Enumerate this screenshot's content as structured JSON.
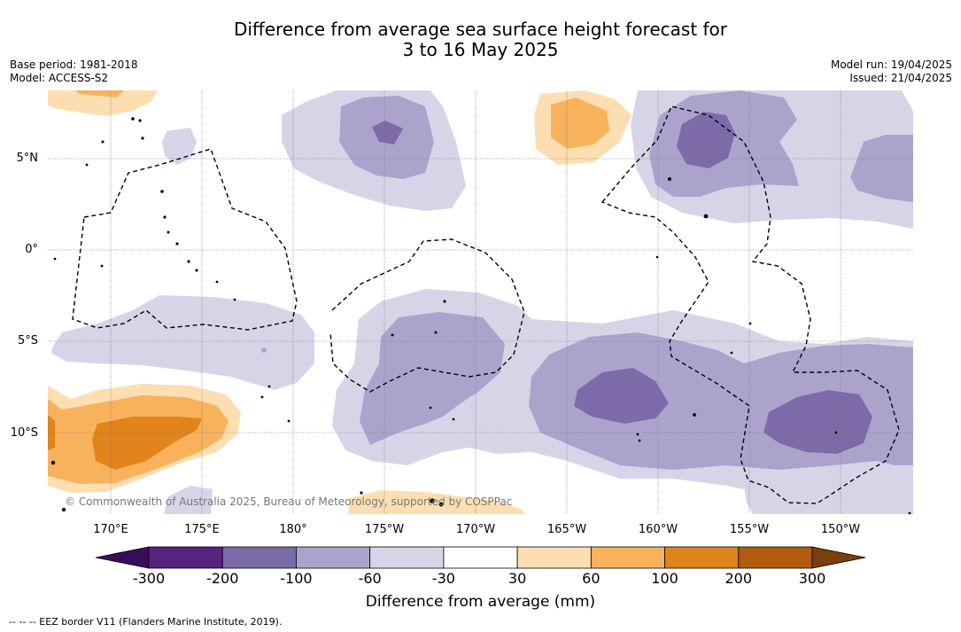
{
  "header": {
    "title_line1": "Difference from average sea surface height forecast for",
    "title_line2": "3 to 16 May 2025",
    "base_period": "Base period: 1981-2018",
    "model": "Model: ACCESS-S2",
    "model_run": "Model run: 19/04/2025",
    "issued": "Issued: 21/04/2025"
  },
  "map": {
    "lat_labels": [
      "5°N",
      "0°",
      "5°S",
      "10°S"
    ],
    "lon_labels": [
      "170°E",
      "175°E",
      "180°",
      "175°W",
      "170°W",
      "165°W",
      "160°W",
      "155°W",
      "150°W"
    ],
    "copyright": "© Commonwealth of Australia 2025, Bureau of Meteorology, supported by COSPPac"
  },
  "colorbar": {
    "ticks": [
      "-300",
      "-200",
      "-100",
      "-60",
      "-30",
      "30",
      "60",
      "100",
      "200",
      "300"
    ],
    "colors": [
      "#55247f",
      "#7c6ba8",
      "#aca3cd",
      "#d6d5e8",
      "#ffffff",
      "#fddeb1",
      "#f8b25c",
      "#e0841b",
      "#b15b0f"
    ],
    "under_color": "#3a0d5c",
    "over_color": "#7b3f0c",
    "label": "Difference from average (mm)"
  },
  "footer": {
    "eez_legend": "--  --  -- EEZ border V11 (Flanders Marine Institute, 2019)."
  }
}
